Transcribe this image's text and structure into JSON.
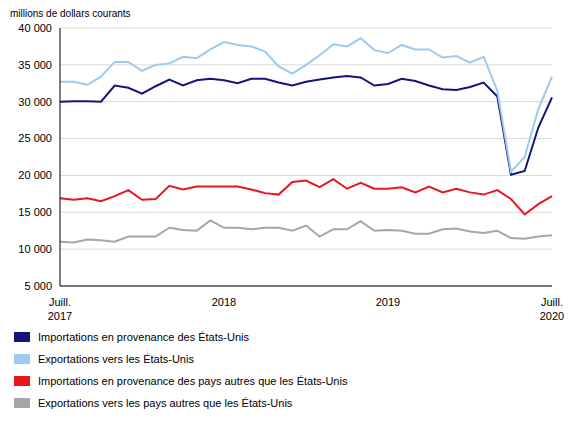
{
  "chart_data": {
    "type": "line",
    "y_label": "millions de dollars courants",
    "categories": [
      "Juill. 2017",
      null,
      null,
      null,
      null,
      null,
      null,
      null,
      null,
      null,
      null,
      null,
      "2018",
      null,
      null,
      null,
      null,
      null,
      null,
      null,
      null,
      null,
      null,
      null,
      "2019",
      null,
      null,
      null,
      null,
      null,
      null,
      null,
      null,
      null,
      null,
      null,
      "Juill. 2020"
    ],
    "series": [
      {
        "name": "Importations en provenance des États-Unis",
        "color": "#14147a",
        "values": [
          30000,
          30050,
          30050,
          30000,
          32200,
          31900,
          31100,
          32100,
          33000,
          32200,
          32900,
          33100,
          32900,
          32500,
          33100,
          33100,
          32600,
          32200,
          32700,
          33000,
          33300,
          33500,
          33300,
          32200,
          32400,
          33100,
          32800,
          32200,
          31700,
          31600,
          32000,
          32600,
          30700,
          20100,
          20600,
          26500,
          30600
        ]
      },
      {
        "name": "Exportations vers les États-Unis",
        "color": "#9ccaf0",
        "values": [
          32700,
          32700,
          32300,
          33400,
          35400,
          35400,
          34200,
          35000,
          35200,
          36100,
          35900,
          37100,
          38100,
          37700,
          37500,
          36800,
          34800,
          33800,
          35000,
          36300,
          37800,
          37500,
          38600,
          37000,
          36600,
          37700,
          37100,
          37100,
          36000,
          36200,
          35300,
          36100,
          31500,
          20500,
          22500,
          29000,
          33400
        ]
      },
      {
        "name": "Importations en provenance des pays autres que les États-Unis",
        "color": "#e8171e",
        "values": [
          16900,
          16700,
          16900,
          16500,
          17200,
          18000,
          16700,
          16800,
          18600,
          18100,
          18500,
          18500,
          18500,
          18500,
          18100,
          17600,
          17400,
          19100,
          19300,
          18400,
          19500,
          18200,
          19000,
          18200,
          18200,
          18400,
          17700,
          18500,
          17700,
          18200,
          17700,
          17400,
          18000,
          16800,
          14700,
          16100,
          17200
        ]
      },
      {
        "name": "Exportations vers les pays autres que les États-Unis",
        "color": "#a6a6a6",
        "values": [
          11000,
          10900,
          11300,
          11200,
          11000,
          11700,
          11700,
          11700,
          12900,
          12600,
          12500,
          13900,
          12900,
          12900,
          12700,
          12900,
          12900,
          12500,
          13200,
          11700,
          12700,
          12700,
          13800,
          12500,
          12600,
          12500,
          12100,
          12100,
          12700,
          12800,
          12400,
          12200,
          12500,
          11500,
          11400,
          11700,
          11900
        ]
      }
    ],
    "ylim": [
      5000,
      40000
    ],
    "yticks": [
      {
        "value": 5000,
        "label": "5 000"
      },
      {
        "value": 10000,
        "label": "10 000"
      },
      {
        "value": 15000,
        "label": "15 000"
      },
      {
        "value": 20000,
        "label": "20 000"
      },
      {
        "value": 25000,
        "label": "25 000"
      },
      {
        "value": 30000,
        "label": "30 000"
      },
      {
        "value": 35000,
        "label": "35 000"
      },
      {
        "value": 40000,
        "label": "40 000"
      }
    ],
    "grid": true,
    "legend": "bottom"
  }
}
